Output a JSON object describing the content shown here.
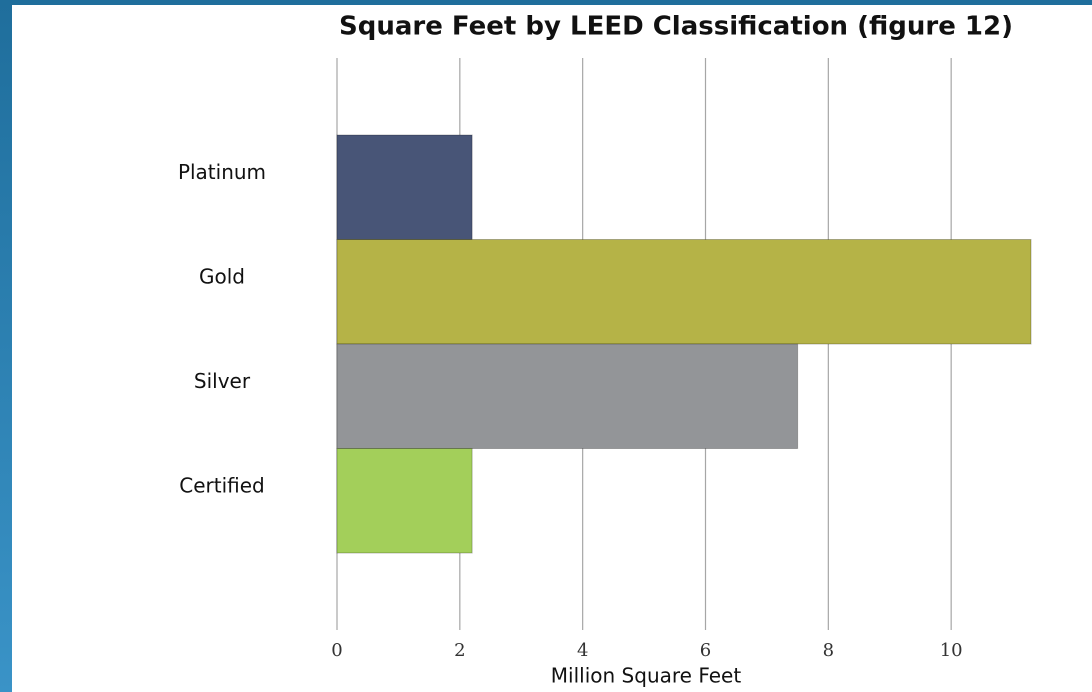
{
  "chart_data": {
    "type": "bar",
    "orientation": "horizontal",
    "title": "Square Feet by LEED Classification (figure 12)",
    "x_label": "Million Square Feet",
    "categories": [
      "Platinum",
      "Gold",
      "Silver",
      "Certified"
    ],
    "values": [
      2.2,
      11.3,
      7.5,
      2.2
    ],
    "colors": [
      "#485577",
      "#b5b347",
      "#939598",
      "#a3cf5a"
    ],
    "xlim": [
      0,
      12
    ],
    "xticks": [
      0,
      2,
      4,
      6,
      8,
      10
    ],
    "grid": true
  }
}
